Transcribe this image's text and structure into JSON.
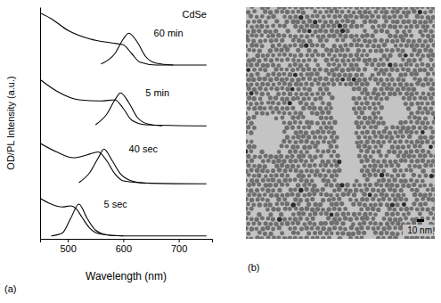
{
  "chart_data": {
    "type": "line",
    "title": "CdSe",
    "panel_label": "(a)",
    "xlabel": "Wavelength (nm)",
    "ylabel": "OD/PL Intensity (a.u.)",
    "xlim": [
      450,
      760
    ],
    "xticks": [
      500,
      600,
      700
    ],
    "ylim": [
      0,
      4.0
    ],
    "yticks": [],
    "tick_labels": "x",
    "grid": false,
    "color": "#000000",
    "series": [
      {
        "name": "5 sec",
        "color": "#000000",
        "x": [
          450,
          470,
          490,
          505,
          515,
          525,
          540,
          560,
          600,
          750
        ],
        "values": [
          0.7,
          0.6,
          0.55,
          0.57,
          0.52,
          0.38,
          0.18,
          0.08,
          0.05,
          0.05
        ],
        "pl_x": [
          470,
          490,
          505,
          520,
          535,
          550,
          570,
          600
        ],
        "pl_values": [
          0.05,
          0.1,
          0.35,
          0.6,
          0.35,
          0.15,
          0.07,
          0.05
        ]
      },
      {
        "name": "40 sec",
        "color": "#000000",
        "x": [
          450,
          480,
          510,
          535,
          555,
          570,
          585,
          600,
          650,
          750
        ],
        "values": [
          1.65,
          1.5,
          1.4,
          1.45,
          1.5,
          1.35,
          1.12,
          1.0,
          0.96,
          0.95
        ],
        "pl_x": [
          520,
          540,
          555,
          565,
          580,
          595,
          615,
          640
        ],
        "pl_values": [
          0.97,
          1.15,
          1.4,
          1.55,
          1.35,
          1.12,
          1.0,
          0.96
        ]
      },
      {
        "name": "5 min",
        "color": "#000000",
        "x": [
          450,
          480,
          520,
          560,
          585,
          600,
          615,
          640,
          750
        ],
        "values": [
          2.75,
          2.55,
          2.4,
          2.38,
          2.4,
          2.25,
          2.05,
          1.97,
          1.95
        ],
        "pl_x": [
          550,
          570,
          585,
          595,
          610,
          625,
          645,
          670
        ],
        "pl_values": [
          1.97,
          2.15,
          2.4,
          2.52,
          2.35,
          2.1,
          1.98,
          1.95
        ]
      },
      {
        "name": "60 min",
        "color": "#000000",
        "x": [
          450,
          470,
          500,
          540,
          580,
          600,
          615,
          630,
          660,
          750
        ],
        "values": [
          3.9,
          3.8,
          3.6,
          3.45,
          3.38,
          3.35,
          3.2,
          3.05,
          3.0,
          3.0
        ],
        "pl_x": [
          560,
          585,
          600,
          610,
          625,
          640,
          660,
          690
        ],
        "pl_values": [
          3.02,
          3.2,
          3.45,
          3.55,
          3.4,
          3.15,
          3.03,
          3.0
        ]
      }
    ]
  },
  "image": {
    "panel_label": "(b)",
    "scale_bar": "10 nm"
  }
}
